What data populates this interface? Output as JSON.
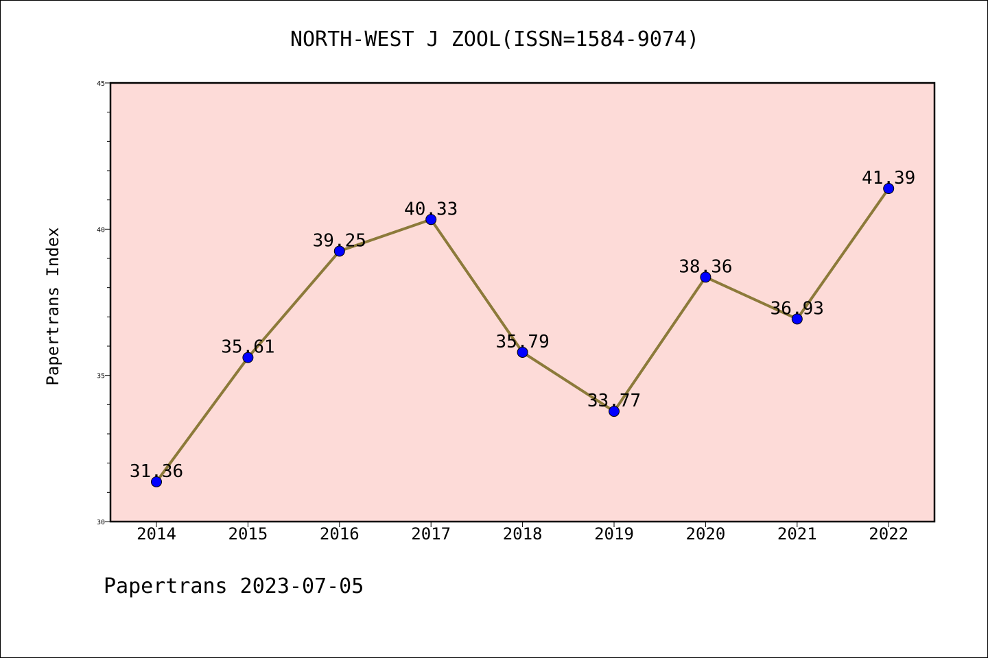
{
  "footer": "Papertrans 2023-07-05",
  "chart_data": {
    "type": "line",
    "title": "NORTH-WEST J ZOOL(ISSN=1584-9074)",
    "xlabel": "",
    "ylabel": "Papertrans Index",
    "categories": [
      "2014",
      "2015",
      "2016",
      "2017",
      "2018",
      "2019",
      "2020",
      "2021",
      "2022"
    ],
    "series": [
      {
        "values": [
          31.36,
          35.61,
          39.25,
          40.33,
          35.79,
          33.77,
          38.36,
          36.93,
          41.39
        ]
      }
    ],
    "data_labels": [
      "31.36",
      "35.61",
      "39.25",
      "40.33",
      "35.79",
      "33.77",
      "38.36",
      "36.93",
      "41.39"
    ],
    "ylim": [
      30,
      45
    ],
    "yticks": [
      30,
      35,
      40,
      45
    ],
    "y_minor_step": 1,
    "grid": false,
    "colors": {
      "background": "#fddbd8",
      "line": "#8c7a3a",
      "marker": "#0000ff"
    }
  }
}
